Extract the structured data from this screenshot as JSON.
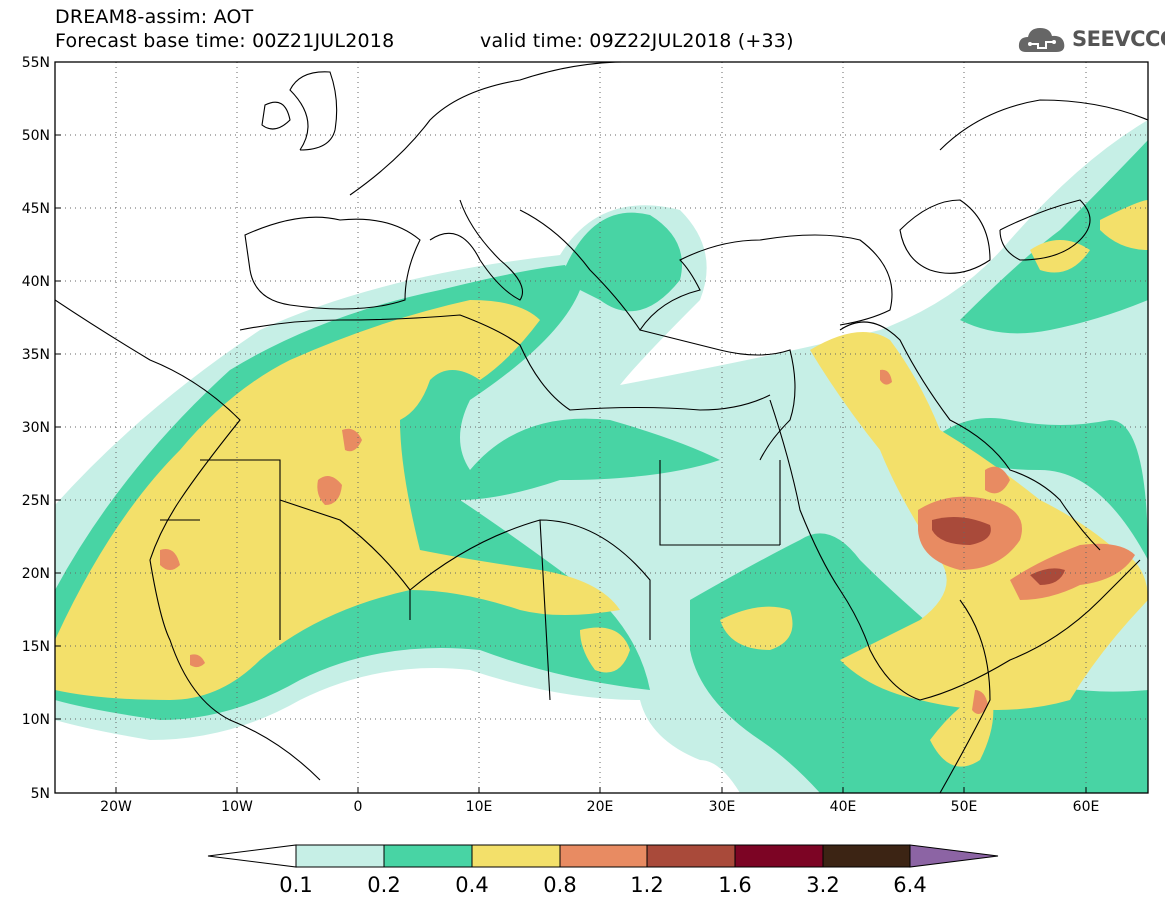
{
  "header": {
    "title": "DREAM8-assim: AOT",
    "base_time_text": "Forecast base time: 00Z21JUL2018",
    "valid_time_text": "valid time: 09Z22JUL2018 (+33)"
  },
  "logo": {
    "text": "SEEVCCC",
    "icon": "cloud-icon"
  },
  "map": {
    "projection": "lat-lon",
    "lon_range": [
      -25,
      65
    ],
    "lat_range": [
      5,
      55
    ],
    "lat_ticks": [
      "55N",
      "50N",
      "45N",
      "40N",
      "35N",
      "30N",
      "25N",
      "20N",
      "15N",
      "10N",
      "5N"
    ],
    "lon_ticks": [
      "20W",
      "10W",
      "0",
      "10E",
      "20E",
      "30E",
      "40E",
      "50E",
      "60E"
    ],
    "grid": "dotted",
    "variable": "AOT"
  },
  "colorbar": {
    "labels": [
      "0.1",
      "0.2",
      "0.4",
      "0.8",
      "1.2",
      "1.6",
      "3.2",
      "6.4"
    ],
    "colors": {
      "under": "#ffffff",
      "b1": "#c6efe6",
      "b2": "#48d4a4",
      "b3": "#f3e06a",
      "b4": "#e88b62",
      "b5": "#a94a3a",
      "b6": "#7c0424",
      "b7": "#3c2414",
      "over": "#8c64a4"
    }
  }
}
